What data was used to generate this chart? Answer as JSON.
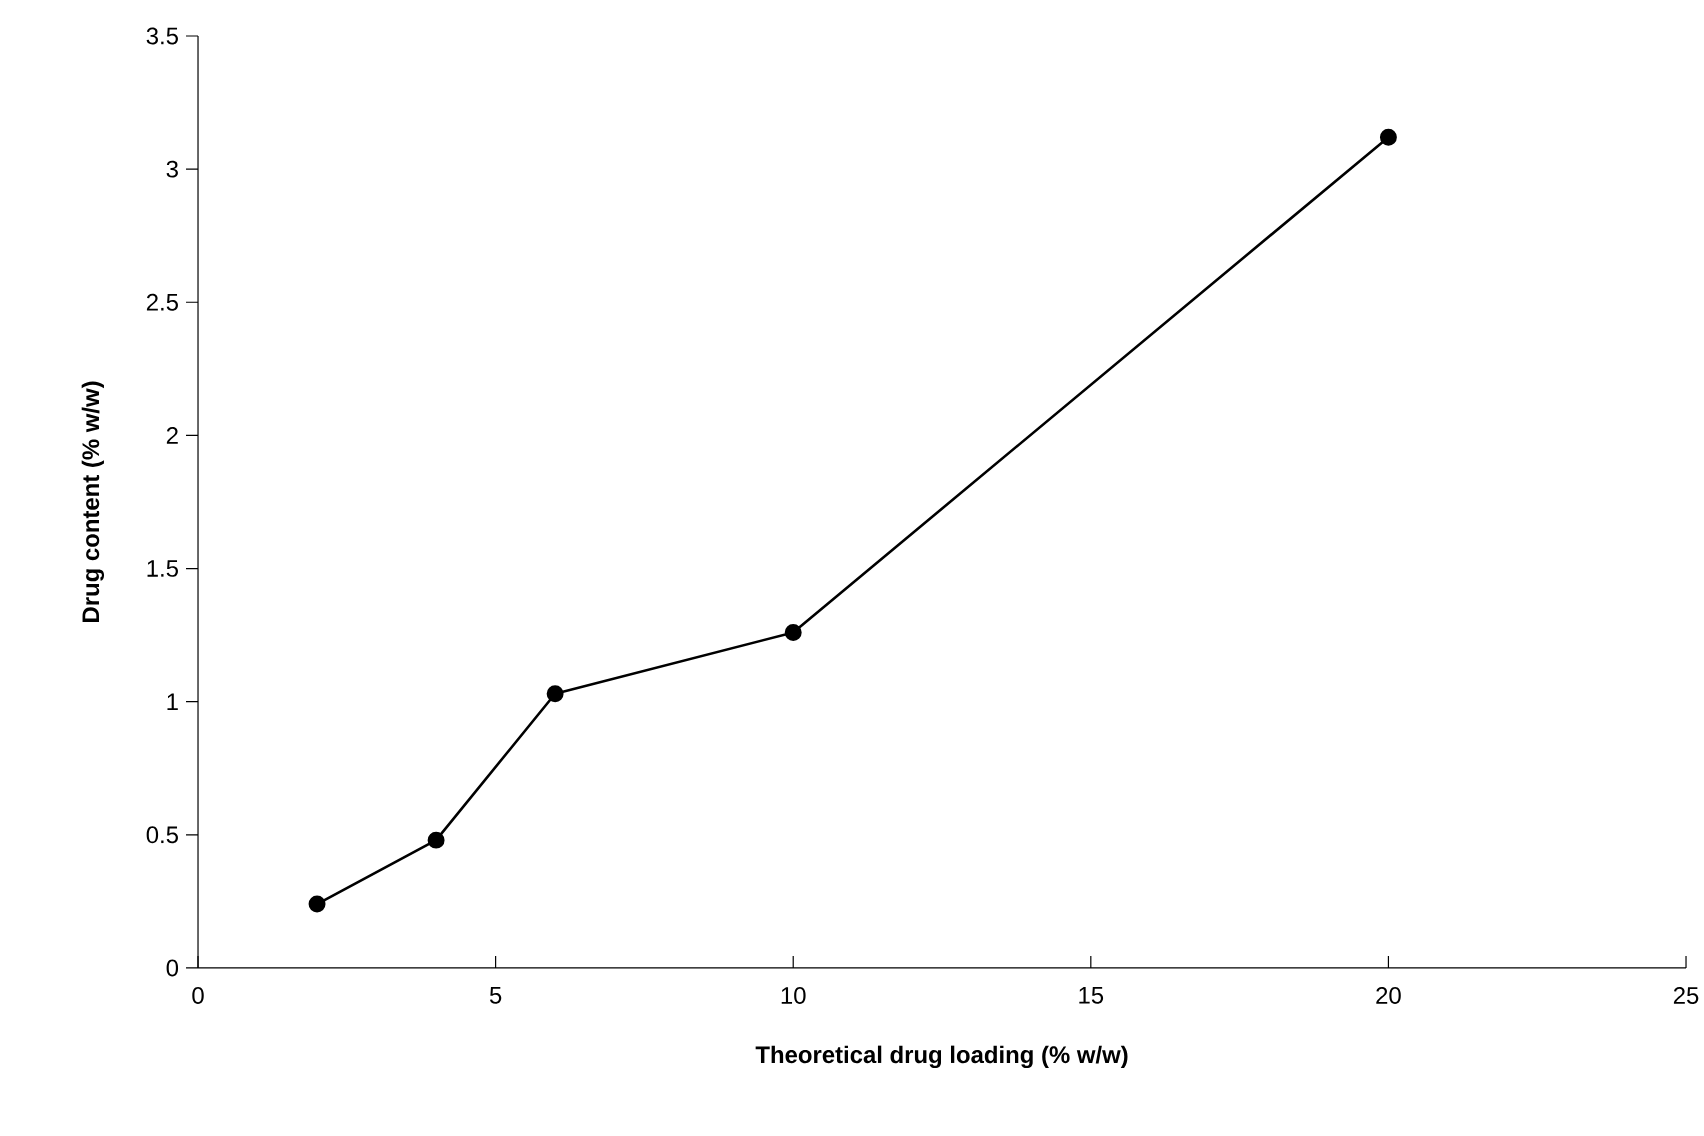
{
  "chart_data": {
    "type": "line",
    "xlabel": "Theoretical drug loading  (% w/w)",
    "ylabel": "Drug content (% w/w)",
    "x": [
      2,
      4,
      6,
      10,
      20
    ],
    "series": [
      {
        "color": "#000000",
        "values": [
          0.24,
          0.48,
          1.03,
          1.26,
          3.12
        ]
      }
    ],
    "xlim": [
      0,
      25
    ],
    "xticks": [
      0,
      5,
      10,
      15,
      20,
      25
    ],
    "ylim": [
      0,
      3.5
    ],
    "yticks": [
      0,
      0.5,
      1,
      1.5,
      2,
      2.5,
      3,
      3.5
    ],
    "marker": "circle",
    "line_style": "solid"
  }
}
